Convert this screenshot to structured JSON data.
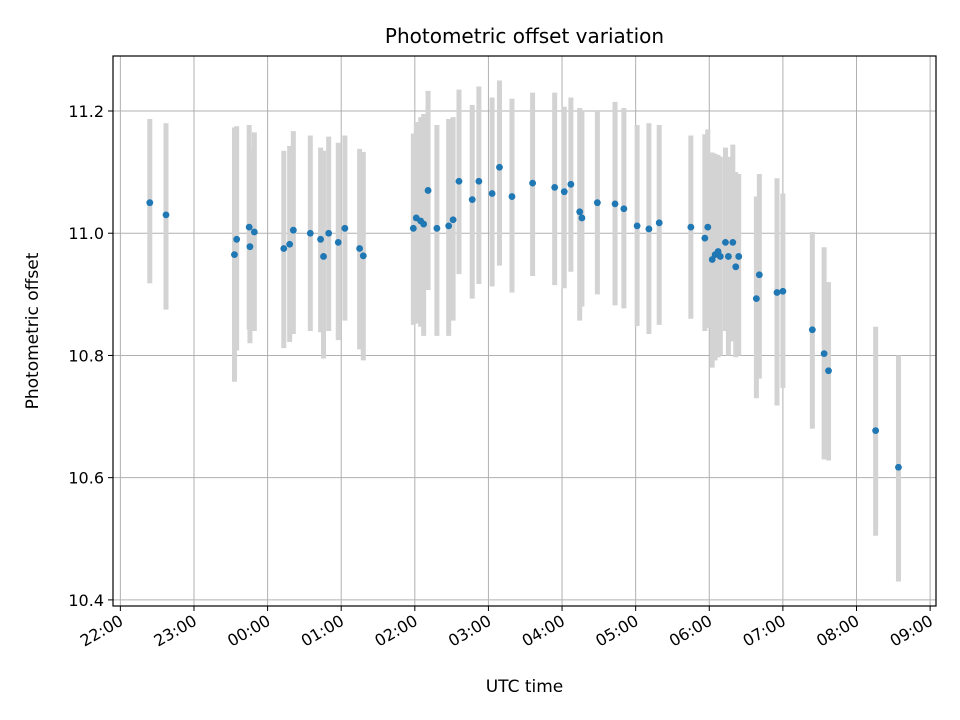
{
  "chart_data": {
    "type": "scatter",
    "title": "Photometric offset variation",
    "xlabel": "UTC time",
    "ylabel": "Photometric offset",
    "x_ticks": [
      "22:00",
      "23:00",
      "00:00",
      "01:00",
      "02:00",
      "03:00",
      "04:00",
      "05:00",
      "06:00",
      "07:00",
      "08:00",
      "09:00"
    ],
    "y_ticks": [
      "10.4",
      "10.6",
      "10.8",
      "11.0",
      "11.2"
    ],
    "x_tick_hours": [
      -2,
      -1,
      0,
      1,
      2,
      3,
      4,
      5,
      6,
      7,
      8,
      9
    ],
    "y_tick_values": [
      10.4,
      10.6,
      10.8,
      11.0,
      11.2
    ],
    "xlim_hours": [
      -2.1,
      9.08
    ],
    "ylim": [
      10.39,
      11.29
    ],
    "grid": true,
    "colors": {
      "point": "#1f77b4",
      "errorbar": "#d3d3d3",
      "grid": "#b0b0b0"
    },
    "series": [
      {
        "x_hours": [
          -1.6,
          -1.38,
          -0.45,
          -0.42,
          -0.25,
          -0.24,
          -0.18,
          0.22,
          0.3,
          0.35,
          0.58,
          0.72,
          0.76,
          0.83,
          0.96,
          1.05,
          1.25,
          1.3,
          1.98,
          2.02,
          2.08,
          2.12,
          2.18,
          2.3,
          2.46,
          2.52,
          2.6,
          2.78,
          2.87,
          3.05,
          3.15,
          3.32,
          3.6,
          3.9,
          4.03,
          4.12,
          4.24,
          4.27,
          4.48,
          4.72,
          4.84,
          5.02,
          5.18,
          5.32,
          5.75,
          5.94,
          5.98,
          6.04,
          6.08,
          6.12,
          6.15,
          6.22,
          6.26,
          6.32,
          6.36,
          6.4,
          6.64,
          6.68,
          6.92,
          7.0,
          7.4,
          7.56,
          7.62,
          8.26,
          8.57
        ],
        "y": [
          11.05,
          11.03,
          10.965,
          10.99,
          11.01,
          10.978,
          11.002,
          10.975,
          10.982,
          11.005,
          11.0,
          10.99,
          10.962,
          11.0,
          10.985,
          11.008,
          10.975,
          10.963,
          11.008,
          11.025,
          11.02,
          11.015,
          11.07,
          11.008,
          11.012,
          11.022,
          11.085,
          11.055,
          11.085,
          11.065,
          11.108,
          11.06,
          11.082,
          11.075,
          11.068,
          11.08,
          11.035,
          11.025,
          11.05,
          11.048,
          11.04,
          11.012,
          11.007,
          11.017,
          11.01,
          10.992,
          11.01,
          10.957,
          10.965,
          10.97,
          10.962,
          10.985,
          10.962,
          10.985,
          10.945,
          10.962,
          10.893,
          10.932,
          10.903,
          10.905,
          10.842,
          10.803,
          10.775,
          10.677,
          10.617
        ],
        "err_low": [
          10.918,
          10.875,
          10.757,
          10.808,
          10.842,
          10.82,
          10.84,
          10.812,
          10.822,
          10.835,
          10.84,
          10.838,
          10.795,
          10.84,
          10.825,
          10.857,
          10.81,
          10.792,
          10.85,
          10.852,
          10.847,
          10.832,
          10.907,
          10.832,
          10.832,
          10.857,
          10.933,
          10.893,
          10.917,
          10.913,
          10.947,
          10.903,
          10.93,
          10.915,
          10.91,
          10.937,
          10.857,
          10.88,
          10.9,
          10.882,
          10.877,
          10.848,
          10.835,
          10.85,
          10.86,
          10.84,
          10.845,
          10.78,
          10.792,
          10.797,
          10.8,
          10.84,
          10.8,
          10.823,
          10.797,
          10.8,
          10.73,
          10.762,
          10.718,
          10.747,
          10.68,
          10.63,
          10.628,
          10.505,
          10.43
        ],
        "err_high": [
          11.187,
          11.18,
          11.173,
          11.175,
          11.177,
          11.137,
          11.165,
          11.135,
          11.143,
          11.167,
          11.16,
          11.14,
          11.135,
          11.158,
          11.148,
          11.16,
          11.138,
          11.133,
          11.163,
          11.182,
          11.19,
          11.195,
          11.233,
          11.177,
          11.187,
          11.19,
          11.235,
          11.21,
          11.24,
          11.222,
          11.25,
          11.22,
          11.23,
          11.23,
          11.207,
          11.222,
          11.205,
          11.2,
          11.2,
          11.215,
          11.205,
          11.177,
          11.18,
          11.177,
          11.16,
          11.162,
          11.17,
          11.132,
          11.13,
          11.128,
          11.125,
          11.14,
          11.125,
          11.145,
          11.1,
          11.097,
          11.06,
          11.097,
          11.09,
          11.065,
          11.002,
          10.977,
          10.92,
          10.847,
          10.8
        ]
      }
    ]
  }
}
